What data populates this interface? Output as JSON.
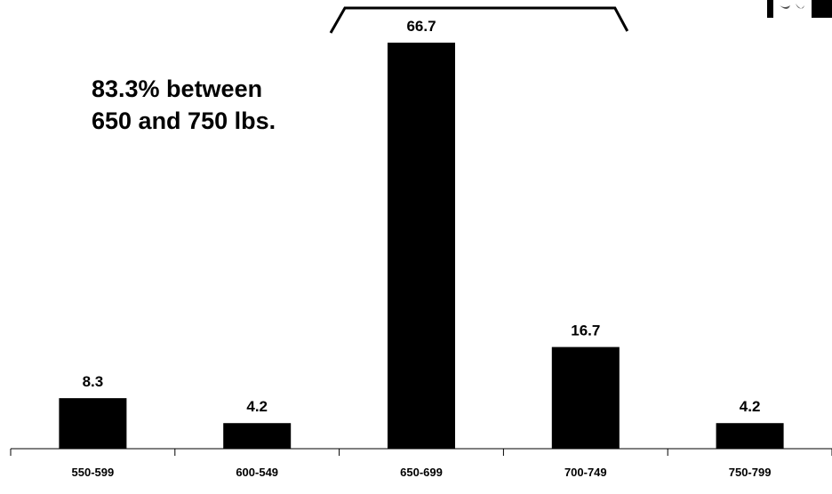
{
  "chart_data": {
    "type": "bar",
    "categories": [
      "550-599",
      "600-549",
      "650-699",
      "700-749",
      "750-799"
    ],
    "values": [
      8.3,
      4.2,
      66.7,
      16.7,
      4.2
    ],
    "data_labels": [
      "8.3",
      "4.2",
      "66.7",
      "16.7",
      "4.2"
    ],
    "ylim": [
      0,
      70
    ],
    "grid": false,
    "legend": "none",
    "bar_color": "#000000",
    "annotation": {
      "lines": [
        "83.3% between",
        "650 and 750 lbs."
      ],
      "bracket_over": [
        "650-699",
        "700-749"
      ]
    }
  }
}
